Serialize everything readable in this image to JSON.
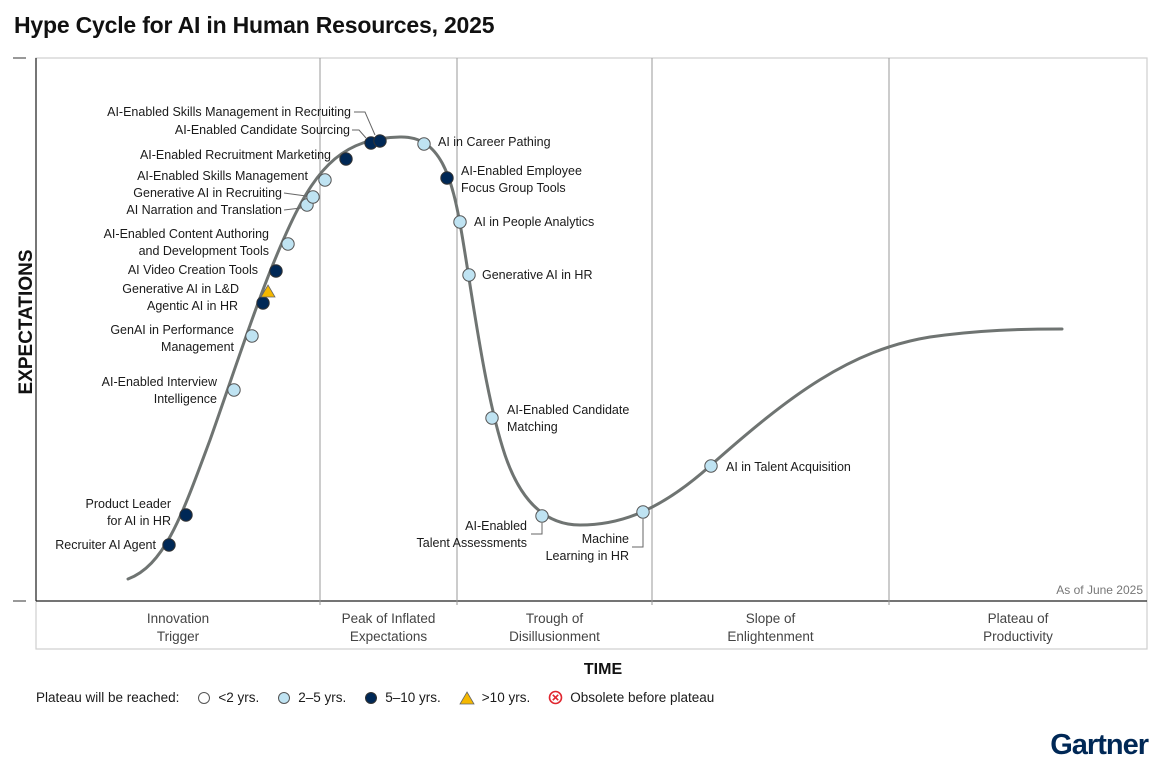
{
  "chart_data": {
    "type": "hype-cycle",
    "title": "Hype Cycle for AI in Human Resources, 2025",
    "xlabel": "TIME",
    "ylabel": "EXPECTATIONS",
    "as_of": "As of June 2025",
    "phases": [
      {
        "id": "innovation",
        "label": [
          "Innovation",
          "Trigger"
        ]
      },
      {
        "id": "peak",
        "label": [
          "Peak of Inflated",
          "Expectations"
        ]
      },
      {
        "id": "trough",
        "label": [
          "Trough of",
          "Disillusionment"
        ]
      },
      {
        "id": "slope",
        "label": [
          "Slope of",
          "Enlightenment"
        ]
      },
      {
        "id": "plateau",
        "label": [
          "Plateau of",
          "Productivity"
        ]
      }
    ],
    "legend": {
      "title": "Plateau will be reached:",
      "items": [
        {
          "id": "lt2",
          "label": "<2 yrs.",
          "color": "#ffffff",
          "shape": "circle"
        },
        {
          "id": "2to5",
          "label": "2–5 yrs.",
          "color": "#bfe3f2",
          "shape": "circle"
        },
        {
          "id": "5to10",
          "label": "5–10 yrs.",
          "color": "#002856",
          "shape": "circle"
        },
        {
          "id": "gt10",
          "label": ">10 yrs.",
          "color": "#f5b800",
          "shape": "triangle"
        },
        {
          "id": "obsolete",
          "label": "Obsolete before plateau",
          "color": "#e0262f",
          "shape": "cross"
        }
      ]
    },
    "points": [
      {
        "name": [
          "Recruiter AI Agent"
        ],
        "category": "5to10",
        "phase": "innovation"
      },
      {
        "name": [
          "Product Leader",
          "for AI in HR"
        ],
        "category": "5to10",
        "phase": "innovation"
      },
      {
        "name": [
          "AI-Enabled Interview",
          "Intelligence"
        ],
        "category": "2to5",
        "phase": "innovation"
      },
      {
        "name": [
          "GenAI in Performance",
          "Management"
        ],
        "category": "2to5",
        "phase": "innovation"
      },
      {
        "name": [
          "Agentic AI in HR"
        ],
        "category": "5to10",
        "phase": "innovation"
      },
      {
        "name": [
          "Generative AI in L&D"
        ],
        "category": "gt10",
        "phase": "innovation"
      },
      {
        "name": [
          "AI Video Creation Tools"
        ],
        "category": "5to10",
        "phase": "innovation"
      },
      {
        "name": [
          "AI-Enabled Content Authoring",
          "and Development Tools"
        ],
        "category": "2to5",
        "phase": "innovation"
      },
      {
        "name": [
          "AI Narration and Translation"
        ],
        "category": "2to5",
        "phase": "innovation"
      },
      {
        "name": [
          "Generative AI in Recruiting"
        ],
        "category": "2to5",
        "phase": "innovation"
      },
      {
        "name": [
          "AI-Enabled Skills Management"
        ],
        "category": "2to5",
        "phase": "peak"
      },
      {
        "name": [
          "AI-Enabled Recruitment Marketing"
        ],
        "category": "5to10",
        "phase": "peak"
      },
      {
        "name": [
          "AI-Enabled Candidate Sourcing"
        ],
        "category": "5to10",
        "phase": "peak"
      },
      {
        "name": [
          "AI-Enabled Skills Management in Recruiting"
        ],
        "category": "5to10",
        "phase": "peak"
      },
      {
        "name": [
          "AI in Career Pathing"
        ],
        "category": "2to5",
        "phase": "peak"
      },
      {
        "name": [
          "AI-Enabled Employee",
          "Focus Group Tools"
        ],
        "category": "5to10",
        "phase": "peak"
      },
      {
        "name": [
          "AI in People Analytics"
        ],
        "category": "2to5",
        "phase": "trough"
      },
      {
        "name": [
          "Generative AI in HR"
        ],
        "category": "2to5",
        "phase": "trough"
      },
      {
        "name": [
          "AI-Enabled Candidate",
          "Matching"
        ],
        "category": "2to5",
        "phase": "trough"
      },
      {
        "name": [
          "AI-Enabled",
          "Talent Assessments"
        ],
        "category": "2to5",
        "phase": "trough"
      },
      {
        "name": [
          "Machine",
          "Learning in HR"
        ],
        "category": "2to5",
        "phase": "trough"
      },
      {
        "name": [
          "AI in Talent Acquisition"
        ],
        "category": "2to5",
        "phase": "slope"
      }
    ]
  },
  "brand": {
    "logo": "Gartner",
    "color": "#002856"
  }
}
